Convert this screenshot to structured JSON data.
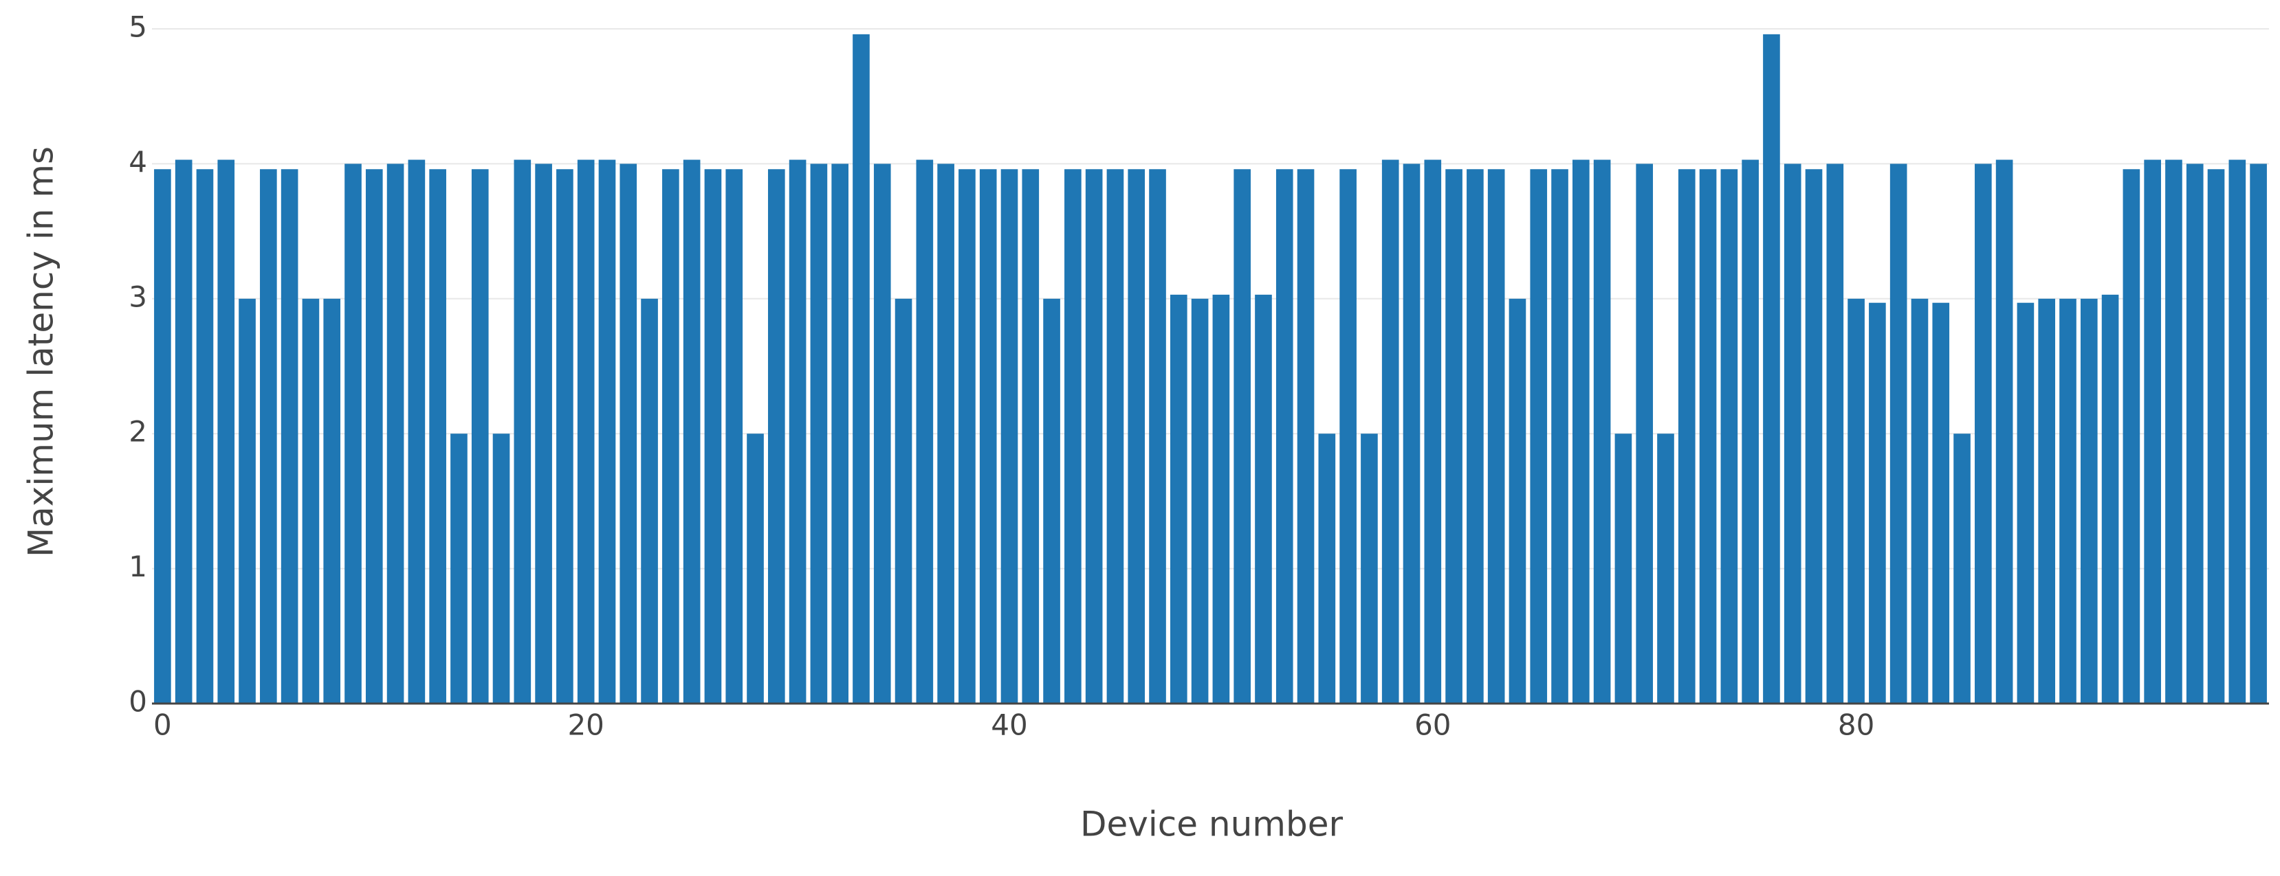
{
  "chart_data": {
    "type": "bar",
    "x_label": "Device number",
    "y_label": "Maximum latency in ms",
    "x": [
      0,
      1,
      2,
      3,
      4,
      5,
      6,
      7,
      8,
      9,
      10,
      11,
      12,
      13,
      14,
      15,
      16,
      17,
      18,
      19,
      20,
      21,
      22,
      23,
      24,
      25,
      26,
      27,
      28,
      29,
      30,
      31,
      32,
      33,
      34,
      35,
      36,
      37,
      38,
      39,
      40,
      41,
      42,
      43,
      44,
      45,
      46,
      47,
      48,
      49,
      50,
      51,
      52,
      53,
      54,
      55,
      56,
      57,
      58,
      59,
      60,
      61,
      62,
      63,
      64,
      65,
      66,
      67,
      68,
      69,
      70,
      71,
      72,
      73,
      74,
      75,
      76,
      77,
      78,
      79,
      80,
      81,
      82,
      83,
      84,
      85,
      86,
      87,
      88,
      89,
      90,
      91,
      92,
      93,
      94,
      95,
      96,
      97,
      98,
      99
    ],
    "values": [
      3.96,
      4.03,
      3.96,
      4.03,
      3.0,
      3.96,
      3.96,
      3.0,
      3.0,
      4.0,
      3.96,
      4.0,
      4.03,
      3.96,
      2.0,
      3.96,
      2.0,
      4.03,
      4.0,
      3.96,
      4.03,
      4.03,
      4.0,
      3.0,
      3.96,
      4.03,
      3.96,
      3.96,
      2.0,
      3.96,
      4.03,
      4.0,
      4.0,
      4.96,
      4.0,
      3.0,
      4.03,
      4.0,
      3.96,
      3.96,
      3.96,
      3.96,
      3.0,
      3.96,
      3.96,
      3.96,
      3.96,
      3.96,
      3.03,
      3.0,
      3.03,
      3.96,
      3.03,
      3.96,
      3.96,
      2.0,
      3.96,
      2.0,
      4.03,
      4.0,
      4.03,
      3.96,
      3.96,
      3.96,
      3.0,
      3.96,
      3.96,
      4.03,
      4.03,
      2.0,
      4.0,
      2.0,
      3.96,
      3.96,
      3.96,
      4.03,
      4.96,
      4.0,
      3.96,
      4.0,
      3.0,
      2.97,
      4.0,
      3.0,
      2.97,
      2.0,
      4.0,
      4.03,
      2.97,
      3.0,
      3.0,
      3.0,
      3.03,
      3.96,
      4.03,
      4.03,
      4.0,
      3.96,
      4.03,
      4.0
    ],
    "color": "#1f77b4",
    "xlim": [
      -0.5,
      99.5
    ],
    "xticks": [
      0,
      20,
      40,
      60,
      80
    ],
    "ylim": [
      0,
      5
    ],
    "yticks": [
      0,
      1,
      2,
      3,
      4,
      5
    ],
    "grid": true
  }
}
